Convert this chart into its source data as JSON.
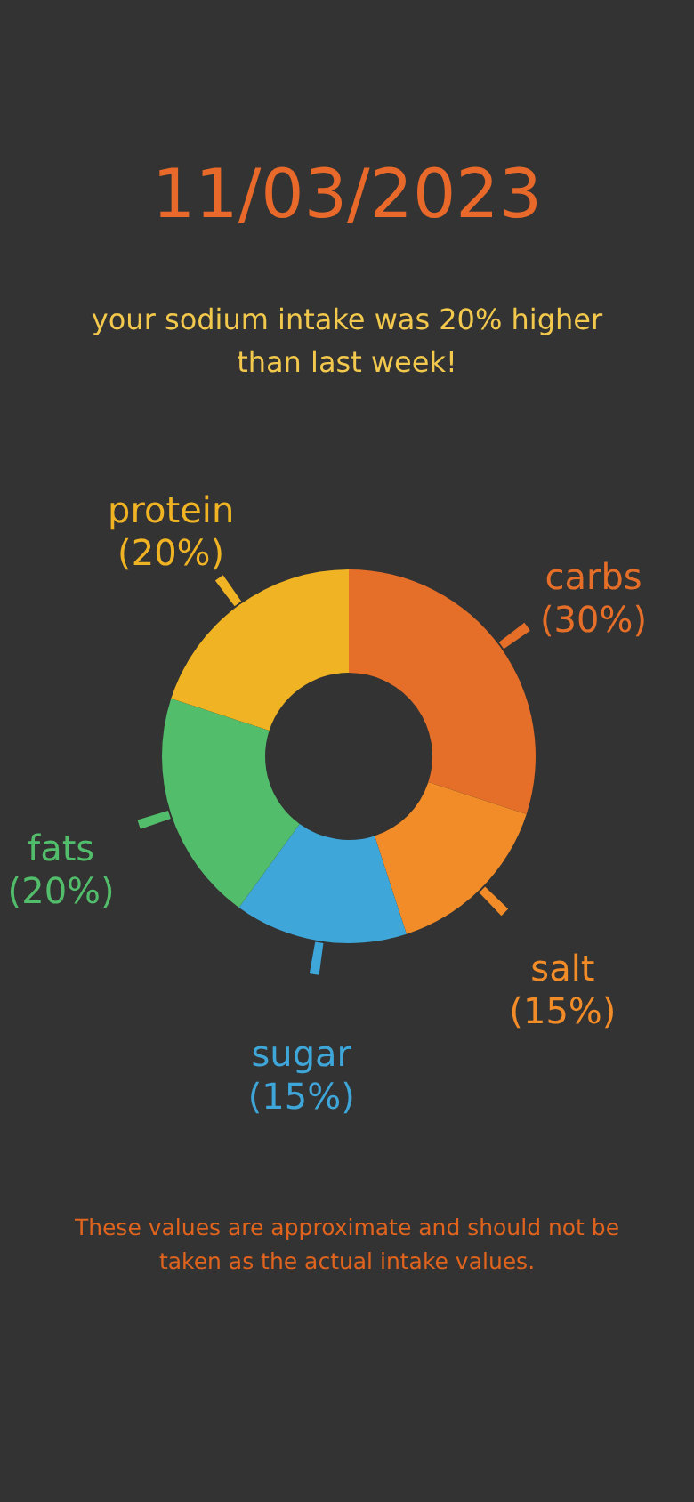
{
  "chart_data": {
    "type": "donut",
    "title": "11/03/2023",
    "subtitle": "your sodium intake was 20% higher\nthan last week!",
    "categories": [
      "carbs",
      "salt",
      "sugar",
      "fats",
      "protein"
    ],
    "values": [
      30,
      15,
      15,
      20,
      20
    ],
    "colors": [
      "#e56e28",
      "#f28c28",
      "#3ea6d8",
      "#52bd6a",
      "#f0b323"
    ],
    "value_labels": [
      "(30%)",
      "(15%)",
      "(15%)",
      "(20%)",
      "(20%)"
    ],
    "annotations": [
      "These values are approximate and should not be\ntaken as the actual intake values."
    ]
  }
}
